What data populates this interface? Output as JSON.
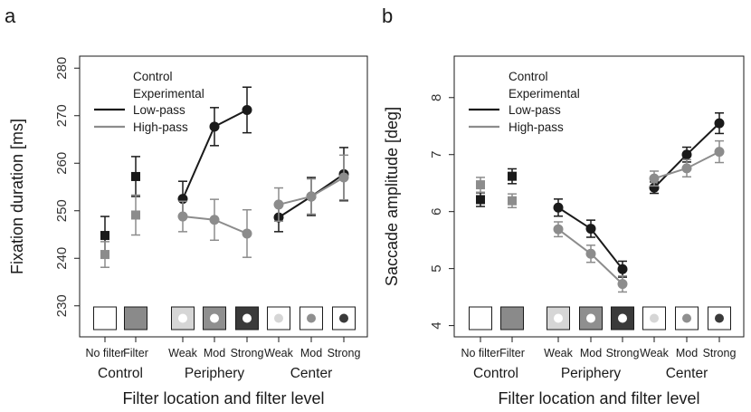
{
  "figure": {
    "panels": [
      "a",
      "b"
    ],
    "xlabel": "Filter location and filter level",
    "categories": [
      "No filter",
      "Filter",
      "Weak",
      "Mod",
      "Strong",
      "Weak",
      "Mod",
      "Strong"
    ],
    "groups": [
      "Control",
      "Periphery",
      "Center"
    ],
    "legend": {
      "control": "Control",
      "experimental": "Experimental",
      "lowpass": "Low-pass",
      "highpass": "High-pass"
    },
    "colors": {
      "lowpass": "#1a1a1a",
      "highpass": "#8c8c8c"
    },
    "filter_icons": [
      "blank",
      "gray-fill",
      "white-center-dot",
      "white-center-dot",
      "white-center-dot",
      "gray-center-dot",
      "gray-center-dot",
      "gray-center-dot"
    ]
  },
  "chart_data": [
    {
      "type": "scatter",
      "panel": "a",
      "ylabel": "Fixation duration [ms]",
      "ylim": [
        225,
        281
      ],
      "yticks": [
        230,
        240,
        250,
        260,
        270,
        280
      ],
      "categories": [
        "No filter",
        "Filter",
        "Weak",
        "Mod",
        "Strong",
        "Weak",
        "Mod",
        "Strong"
      ],
      "series": [
        {
          "name": "Low-pass",
          "values": [
            244.8,
            257.2,
            252.5,
            267.7,
            271.2,
            248.6,
            253.0,
            257.7
          ],
          "err": [
            4.0,
            4.2,
            3.7,
            4.0,
            4.8,
            3.0,
            4.0,
            5.6
          ]
        },
        {
          "name": "High-pass",
          "values": [
            240.8,
            249.1,
            248.8,
            248.1,
            245.2,
            251.3,
            253.0,
            257.0
          ],
          "err": [
            2.7,
            4.2,
            3.2,
            4.3,
            5.0,
            3.5,
            3.7,
            4.7
          ]
        }
      ],
      "control_connected": false,
      "grid": false,
      "legend_position": "top-left"
    },
    {
      "type": "scatter",
      "panel": "b",
      "ylabel": "Saccade amplitude [deg]",
      "ylim": [
        3.93,
        8.6
      ],
      "yticks": [
        4,
        5,
        6,
        7,
        8
      ],
      "categories": [
        "No filter",
        "Filter",
        "Weak",
        "Mod",
        "Strong",
        "Weak",
        "Mod",
        "Strong"
      ],
      "series": [
        {
          "name": "Low-pass",
          "values": [
            6.21,
            6.62,
            6.07,
            5.7,
            4.99,
            6.42,
            7.0,
            7.55
          ],
          "err": [
            0.12,
            0.13,
            0.15,
            0.15,
            0.14,
            0.1,
            0.13,
            0.18
          ]
        },
        {
          "name": "High-pass",
          "values": [
            6.47,
            6.19,
            5.69,
            5.26,
            4.73,
            6.58,
            6.76,
            7.05
          ],
          "err": [
            0.13,
            0.12,
            0.13,
            0.15,
            0.14,
            0.13,
            0.15,
            0.19
          ]
        }
      ],
      "control_connected": false,
      "grid": false,
      "legend_position": "top-left"
    }
  ]
}
